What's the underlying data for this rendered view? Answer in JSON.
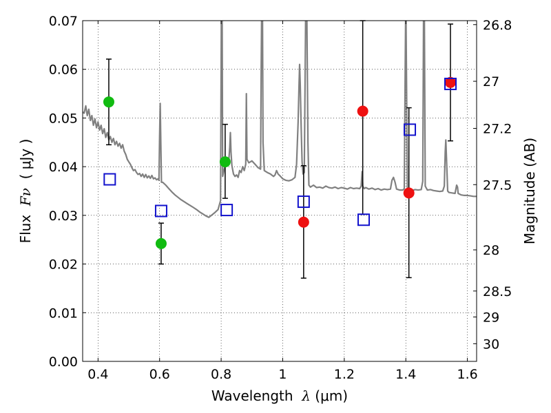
{
  "chart_data": {
    "type": "scatter",
    "title": "",
    "xlabel": {
      "pre": "Wavelength  ",
      "sym": "λ",
      "post": " (μm)"
    },
    "ylabel": {
      "pre": "Flux  ",
      "sym": "Fν",
      "post": "  ( μJy )"
    },
    "y2label": "Magnitude (AB)",
    "xlim": [
      0.35,
      1.63
    ],
    "ylim": [
      0.0,
      0.07
    ],
    "grid": true,
    "x_ticks": [
      0.4,
      0.6,
      0.8,
      1.0,
      1.2,
      1.4,
      1.6
    ],
    "x_tick_labels": [
      "0.4",
      "0.6",
      "0.8",
      "1",
      "1.2",
      "1.4",
      "1.6"
    ],
    "y_ticks": [
      0.0,
      0.01,
      0.02,
      0.03,
      0.04,
      0.05,
      0.06,
      0.07
    ],
    "y_tick_labels": [
      "0.00",
      "0.01",
      "0.02",
      "0.03",
      "0.04",
      "0.05",
      "0.06",
      "0.07"
    ],
    "mag_ticks": [
      26.8,
      27,
      27.2,
      27.5,
      28,
      28.5,
      29,
      30
    ],
    "mag_tick_labels": [
      "26.8",
      "27",
      "27.2",
      "27.5",
      "28",
      "28.5",
      "29",
      "30"
    ],
    "colors": {
      "green": "#11bb11",
      "red": "#ee1111",
      "blue": "#1111cc",
      "spectrum": "#808080"
    },
    "series": [
      {
        "marker": "circle",
        "color": "green",
        "points": [
          {
            "x": 0.435,
            "y": 0.0533,
            "err_lo": 0.0088,
            "err_hi": 0.0088
          },
          {
            "x": 0.605,
            "y": 0.0242,
            "err_lo": 0.0042,
            "err_hi": 0.0042
          },
          {
            "x": 0.813,
            "y": 0.041,
            "err_lo": 0.0075,
            "err_hi": 0.0077
          }
        ]
      },
      {
        "marker": "circle",
        "color": "red",
        "points": [
          {
            "x": 1.068,
            "y": 0.0286,
            "err_lo": 0.0115,
            "err_hi": 0.0116
          },
          {
            "x": 1.26,
            "y": 0.0514,
            "err_lo": 0.0212,
            "err_hi": 0.0186
          },
          {
            "x": 1.41,
            "y": 0.0346,
            "err_lo": 0.0174,
            "err_hi": 0.0175
          },
          {
            "x": 1.545,
            "y": 0.0573,
            "err_lo": 0.012,
            "err_hi": 0.012
          }
        ]
      },
      {
        "marker": "square",
        "color": "blue",
        "points": [
          {
            "x": 0.438,
            "y": 0.0374
          },
          {
            "x": 0.605,
            "y": 0.0309
          },
          {
            "x": 0.818,
            "y": 0.0311
          },
          {
            "x": 1.068,
            "y": 0.0328
          },
          {
            "x": 1.263,
            "y": 0.0291
          },
          {
            "x": 1.413,
            "y": 0.0476
          },
          {
            "x": 1.545,
            "y": 0.057
          }
        ]
      }
    ],
    "spectrum": {
      "color": "spectrum",
      "points": [
        [
          0.35,
          0.0512
        ],
        [
          0.355,
          0.051
        ],
        [
          0.36,
          0.0525
        ],
        [
          0.365,
          0.0505
        ],
        [
          0.37,
          0.0518
        ],
        [
          0.375,
          0.0495
        ],
        [
          0.38,
          0.0505
        ],
        [
          0.385,
          0.0485
        ],
        [
          0.39,
          0.0498
        ],
        [
          0.395,
          0.048
        ],
        [
          0.4,
          0.0492
        ],
        [
          0.405,
          0.0475
        ],
        [
          0.41,
          0.0485
        ],
        [
          0.415,
          0.0468
        ],
        [
          0.42,
          0.0478
        ],
        [
          0.425,
          0.046
        ],
        [
          0.43,
          0.047
        ],
        [
          0.435,
          0.0455
        ],
        [
          0.44,
          0.0462
        ],
        [
          0.445,
          0.045
        ],
        [
          0.45,
          0.0458
        ],
        [
          0.455,
          0.0445
        ],
        [
          0.46,
          0.0452
        ],
        [
          0.465,
          0.0442
        ],
        [
          0.47,
          0.0448
        ],
        [
          0.475,
          0.0438
        ],
        [
          0.48,
          0.0445
        ],
        [
          0.485,
          0.0432
        ],
        [
          0.49,
          0.0425
        ],
        [
          0.495,
          0.0415
        ],
        [
          0.5,
          0.041
        ],
        [
          0.505,
          0.0405
        ],
        [
          0.51,
          0.0398
        ],
        [
          0.515,
          0.0392
        ],
        [
          0.52,
          0.0394
        ],
        [
          0.525,
          0.0388
        ],
        [
          0.53,
          0.0384
        ],
        [
          0.535,
          0.0386
        ],
        [
          0.54,
          0.038
        ],
        [
          0.545,
          0.0385
        ],
        [
          0.55,
          0.0378
        ],
        [
          0.555,
          0.0384
        ],
        [
          0.56,
          0.0377
        ],
        [
          0.565,
          0.0381
        ],
        [
          0.57,
          0.0376
        ],
        [
          0.575,
          0.0382
        ],
        [
          0.58,
          0.0375
        ],
        [
          0.585,
          0.0377
        ],
        [
          0.59,
          0.0373
        ],
        [
          0.595,
          0.0375
        ],
        [
          0.598,
          0.0372
        ],
        [
          0.6,
          0.046
        ],
        [
          0.602,
          0.053
        ],
        [
          0.604,
          0.045
        ],
        [
          0.606,
          0.0368
        ],
        [
          0.61,
          0.0368
        ],
        [
          0.62,
          0.0362
        ],
        [
          0.63,
          0.0355
        ],
        [
          0.64,
          0.0348
        ],
        [
          0.65,
          0.0342
        ],
        [
          0.66,
          0.0337
        ],
        [
          0.67,
          0.0332
        ],
        [
          0.68,
          0.0328
        ],
        [
          0.69,
          0.0324
        ],
        [
          0.7,
          0.032
        ],
        [
          0.71,
          0.0316
        ],
        [
          0.72,
          0.0312
        ],
        [
          0.73,
          0.0307
        ],
        [
          0.74,
          0.0303
        ],
        [
          0.75,
          0.0299
        ],
        [
          0.76,
          0.0296
        ],
        [
          0.77,
          0.0301
        ],
        [
          0.78,
          0.0306
        ],
        [
          0.79,
          0.0312
        ],
        [
          0.798,
          0.033
        ],
        [
          0.801,
          0.075
        ],
        [
          0.803,
          0.075
        ],
        [
          0.805,
          0.038
        ],
        [
          0.81,
          0.0395
        ],
        [
          0.815,
          0.0405
        ],
        [
          0.82,
          0.0412
        ],
        [
          0.825,
          0.0415
        ],
        [
          0.828,
          0.044
        ],
        [
          0.83,
          0.047
        ],
        [
          0.832,
          0.043
        ],
        [
          0.835,
          0.0402
        ],
        [
          0.84,
          0.0385
        ],
        [
          0.845,
          0.038
        ],
        [
          0.85,
          0.0383
        ],
        [
          0.855,
          0.0378
        ],
        [
          0.86,
          0.0392
        ],
        [
          0.865,
          0.0388
        ],
        [
          0.87,
          0.04
        ],
        [
          0.875,
          0.0392
        ],
        [
          0.88,
          0.0405
        ],
        [
          0.882,
          0.055
        ],
        [
          0.884,
          0.0415
        ],
        [
          0.89,
          0.0408
        ],
        [
          0.9,
          0.0412
        ],
        [
          0.91,
          0.0405
        ],
        [
          0.92,
          0.0398
        ],
        [
          0.928,
          0.0395
        ],
        [
          0.93,
          0.06
        ],
        [
          0.932,
          0.075
        ],
        [
          0.934,
          0.075
        ],
        [
          0.936,
          0.045
        ],
        [
          0.94,
          0.0392
        ],
        [
          0.95,
          0.0388
        ],
        [
          0.96,
          0.0385
        ],
        [
          0.97,
          0.038
        ],
        [
          0.975,
          0.0383
        ],
        [
          0.98,
          0.0392
        ],
        [
          0.985,
          0.0385
        ],
        [
          0.99,
          0.0382
        ],
        [
          1.0,
          0.0375
        ],
        [
          1.01,
          0.0372
        ],
        [
          1.02,
          0.0371
        ],
        [
          1.03,
          0.0373
        ],
        [
          1.04,
          0.0378
        ],
        [
          1.045,
          0.0405
        ],
        [
          1.05,
          0.049
        ],
        [
          1.053,
          0.057
        ],
        [
          1.055,
          0.061
        ],
        [
          1.057,
          0.057
        ],
        [
          1.06,
          0.048
        ],
        [
          1.063,
          0.041
        ],
        [
          1.066,
          0.0385
        ],
        [
          1.07,
          0.0388
        ],
        [
          1.073,
          0.06
        ],
        [
          1.075,
          0.075
        ],
        [
          1.078,
          0.075
        ],
        [
          1.082,
          0.045
        ],
        [
          1.085,
          0.0362
        ],
        [
          1.09,
          0.0358
        ],
        [
          1.1,
          0.0362
        ],
        [
          1.11,
          0.0357
        ],
        [
          1.12,
          0.0358
        ],
        [
          1.13,
          0.0356
        ],
        [
          1.14,
          0.036
        ],
        [
          1.15,
          0.0357
        ],
        [
          1.16,
          0.0356
        ],
        [
          1.17,
          0.0358
        ],
        [
          1.18,
          0.0355
        ],
        [
          1.19,
          0.0357
        ],
        [
          1.2,
          0.0356
        ],
        [
          1.21,
          0.0354
        ],
        [
          1.22,
          0.0357
        ],
        [
          1.23,
          0.0355
        ],
        [
          1.24,
          0.0356
        ],
        [
          1.25,
          0.0355
        ],
        [
          1.255,
          0.036
        ],
        [
          1.258,
          0.039
        ],
        [
          1.26,
          0.036
        ],
        [
          1.265,
          0.0355
        ],
        [
          1.27,
          0.0357
        ],
        [
          1.28,
          0.0354
        ],
        [
          1.29,
          0.0356
        ],
        [
          1.3,
          0.0353
        ],
        [
          1.31,
          0.0355
        ],
        [
          1.32,
          0.0352
        ],
        [
          1.33,
          0.0354
        ],
        [
          1.34,
          0.0353
        ],
        [
          1.35,
          0.0354
        ],
        [
          1.355,
          0.0372
        ],
        [
          1.36,
          0.0378
        ],
        [
          1.365,
          0.0368
        ],
        [
          1.37,
          0.0354
        ],
        [
          1.38,
          0.0352
        ],
        [
          1.39,
          0.0352
        ],
        [
          1.395,
          0.0355
        ],
        [
          1.398,
          0.06
        ],
        [
          1.4,
          0.075
        ],
        [
          1.402,
          0.06
        ],
        [
          1.405,
          0.0352
        ],
        [
          1.41,
          0.0352
        ],
        [
          1.42,
          0.0351
        ],
        [
          1.43,
          0.0353
        ],
        [
          1.44,
          0.0352
        ],
        [
          1.45,
          0.0353
        ],
        [
          1.455,
          0.037
        ],
        [
          1.458,
          0.075
        ],
        [
          1.46,
          0.075
        ],
        [
          1.463,
          0.036
        ],
        [
          1.47,
          0.0352
        ],
        [
          1.48,
          0.0353
        ],
        [
          1.49,
          0.0351
        ],
        [
          1.5,
          0.035
        ],
        [
          1.51,
          0.0349
        ],
        [
          1.52,
          0.035
        ],
        [
          1.525,
          0.036
        ],
        [
          1.528,
          0.043
        ],
        [
          1.53,
          0.0455
        ],
        [
          1.533,
          0.04
        ],
        [
          1.536,
          0.035
        ],
        [
          1.54,
          0.0347
        ],
        [
          1.55,
          0.0346
        ],
        [
          1.56,
          0.0345
        ],
        [
          1.565,
          0.0362
        ],
        [
          1.568,
          0.0358
        ],
        [
          1.57,
          0.0345
        ],
        [
          1.58,
          0.0342
        ],
        [
          1.59,
          0.0341
        ],
        [
          1.6,
          0.0341
        ],
        [
          1.61,
          0.034
        ],
        [
          1.62,
          0.0339
        ],
        [
          1.63,
          0.0339
        ]
      ]
    }
  }
}
